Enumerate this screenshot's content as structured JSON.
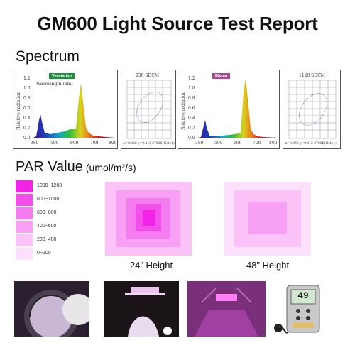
{
  "title": "GM600 Light Source Test Report",
  "spectrum": {
    "heading": "Spectrum",
    "vegetation_chart": {
      "badge": "Vegetation",
      "x_axis_title": "Wavelength (nm)",
      "y_axis_title": "Relative radiation",
      "y_ticks": [
        "1.2",
        "1.0",
        "0.8",
        "0.6",
        "0.4",
        "0.2",
        "0.0"
      ],
      "x_ticks": [
        "380",
        "500",
        "600",
        "700",
        "800"
      ]
    },
    "vegetation_chromaticity": {
      "header": "936 SDCM",
      "footer": "x=0.458 y=0.412 2700K(Note1)"
    },
    "bloom_chart": {
      "badge": "Bloom",
      "y_axis_title": "Relative radiation",
      "y_ticks": [
        "1.2",
        "1.0",
        "0.8",
        "0.6",
        "0.4",
        "0.2",
        "0.0"
      ],
      "x_ticks": [
        "380",
        "500",
        "600",
        "700",
        "800"
      ]
    },
    "bloom_chromaticity": {
      "header": "1120 SDCM",
      "footer": "x=0.459 y=0.412 2700K(Note1)"
    },
    "colors": {
      "vegetation_badge": "#1b8f3a",
      "bloom_badge": "#a8488f"
    }
  },
  "par": {
    "heading": "PAR Value",
    "unit": "(umol/m²/s)",
    "legend": [
      {
        "label": "1000~1200",
        "color": "#f023e6"
      },
      {
        "label": "800~1000",
        "color": "#f24fea"
      },
      {
        "label": "600~800",
        "color": "#f57cef"
      },
      {
        "label": "400~600",
        "color": "#f8a0f4"
      },
      {
        "label": "200~400",
        "color": "#fbc3f7"
      },
      {
        "label": "0~200",
        "color": "#fde0fb"
      }
    ],
    "map_24": {
      "caption": "24\" Height"
    },
    "map_48": {
      "caption": "48\" Height"
    }
  },
  "photos": {
    "meter_reading": "49"
  }
}
